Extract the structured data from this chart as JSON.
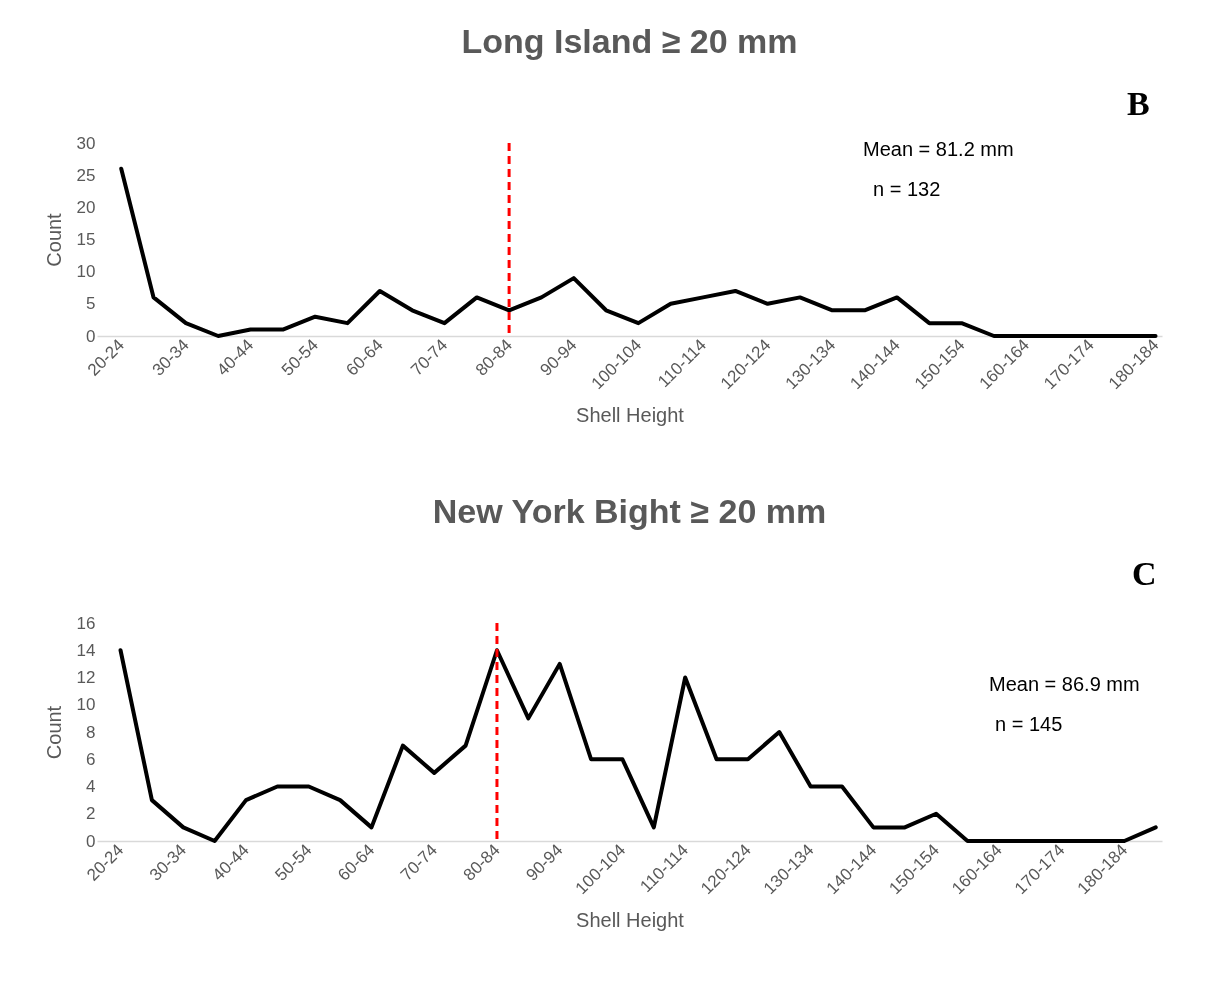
{
  "chart_data": [
    {
      "type": "line",
      "title": "Long Island  ≥ 20 mm",
      "xlabel": "Shell Height",
      "ylabel": "Count",
      "categories": [
        "20-24",
        null,
        "30-34",
        null,
        "40-44",
        null,
        "50-54",
        null,
        "60-64",
        null,
        "70-74",
        null,
        "80-84",
        null,
        "90-94",
        null,
        "100-104",
        null,
        "110-114",
        null,
        "120-124",
        null,
        "130-134",
        null,
        "140-144",
        null,
        "150-154",
        null,
        "160-164",
        null,
        "170-174",
        null,
        "180-184"
      ],
      "series": [
        {
          "color": "#000000",
          "values": [
            26,
            6,
            2,
            0,
            1,
            1,
            3,
            2,
            7,
            4,
            2,
            6,
            4,
            6,
            9,
            4,
            2,
            5,
            6,
            7,
            5,
            6,
            4,
            4,
            6,
            2,
            2,
            0,
            0,
            0,
            0,
            0,
            0
          ]
        }
      ],
      "ylim": [
        0,
        30
      ],
      "yticks": [
        0,
        5,
        10,
        15,
        20,
        25,
        30
      ],
      "grid": false,
      "marker": "none",
      "line_style": "solid",
      "ref_lines": [
        {
          "axis": "x",
          "value": "80-84",
          "color": "#ff0000",
          "line_style": "dashed"
        }
      ],
      "annotations": [
        "Mean = 81.2 mm",
        "n = 132",
        "B"
      ]
    },
    {
      "type": "line",
      "title": "New York Bight ≥ 20 mm",
      "xlabel": "Shell Height",
      "ylabel": "Count",
      "categories": [
        "20-24",
        null,
        "30-34",
        null,
        "40-44",
        null,
        "50-54",
        null,
        "60-64",
        null,
        "70-74",
        null,
        "80-84",
        null,
        "90-94",
        null,
        "100-104",
        null,
        "110-114",
        null,
        "120-124",
        null,
        "130-134",
        null,
        "140-144",
        null,
        "150-154",
        null,
        "160-164",
        null,
        "170-174",
        null,
        "180-184",
        null
      ],
      "series": [
        {
          "color": "#000000",
          "values": [
            14,
            3,
            1,
            0,
            3,
            4,
            4,
            3,
            1,
            7,
            5,
            7,
            14,
            9,
            13,
            6,
            6,
            1,
            12,
            6,
            6,
            8,
            4,
            4,
            1,
            1,
            2,
            0,
            0,
            0,
            0,
            0,
            0,
            1
          ]
        }
      ],
      "ylim": [
        0,
        16
      ],
      "yticks": [
        0,
        2,
        4,
        6,
        8,
        10,
        12,
        14,
        16
      ],
      "grid": false,
      "marker": "none",
      "line_style": "solid",
      "ref_lines": [
        {
          "axis": "x",
          "value": "80-84",
          "color": "#ff0000",
          "line_style": "dashed"
        }
      ],
      "annotations": [
        "Mean = 86.9 mm",
        "n = 145",
        "C"
      ]
    }
  ]
}
